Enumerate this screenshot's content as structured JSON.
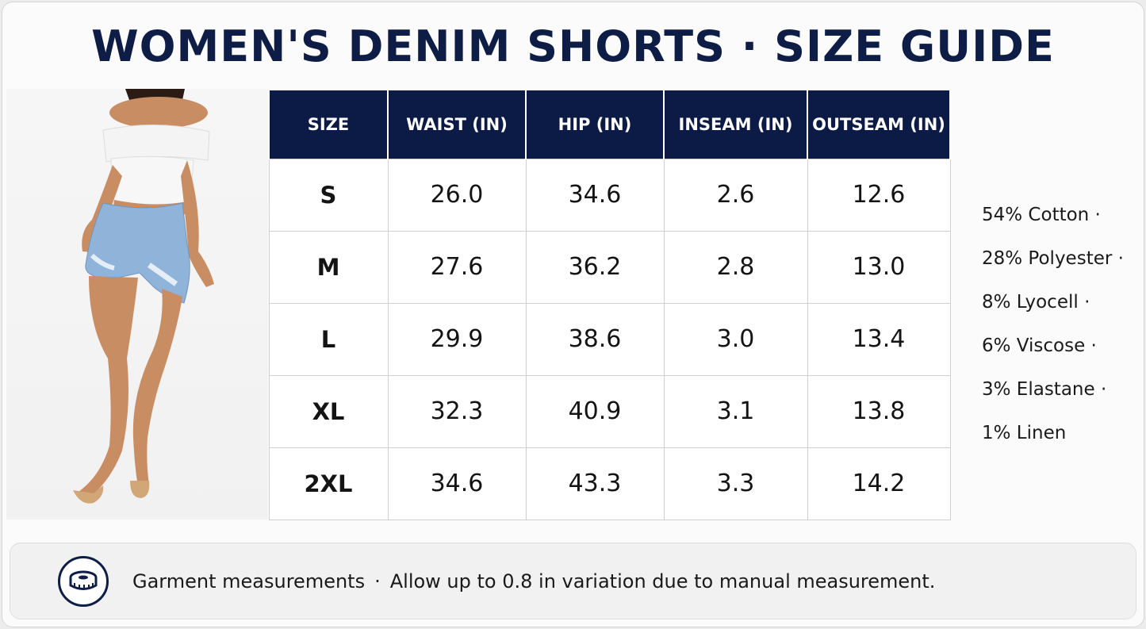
{
  "title": "WOMEN'S DENIM SHORTS · SIZE GUIDE",
  "table": {
    "headers": [
      "SIZE",
      "WAIST (IN)",
      "HIP (IN)",
      "INSEAM (IN)",
      "OUTSEAM (IN)"
    ],
    "rows": [
      [
        "S",
        "26.0",
        "34.6",
        "2.6",
        "12.6"
      ],
      [
        "M",
        "27.6",
        "36.2",
        "2.8",
        "13.0"
      ],
      [
        "L",
        "29.9",
        "38.6",
        "3.0",
        "13.4"
      ],
      [
        "XL",
        "32.3",
        "40.9",
        "3.1",
        "13.8"
      ],
      [
        "2XL",
        "34.6",
        "43.3",
        "3.3",
        "14.2"
      ]
    ]
  },
  "composition": [
    "54% Cotton ·",
    "28% Polyester ·",
    "8% Lyocell ·",
    "6% Viscose ·",
    "3% Elastane ·",
    "1% Linen"
  ],
  "note": {
    "icon": "measuring-tape-icon",
    "label": "Garment measurements",
    "separator": "·",
    "detail": "Allow up to 0.8 in variation due to manual measurement."
  },
  "colors": {
    "navy": "#0c1b45",
    "denim": "#8fb3d9",
    "skin": "#c98d63"
  }
}
